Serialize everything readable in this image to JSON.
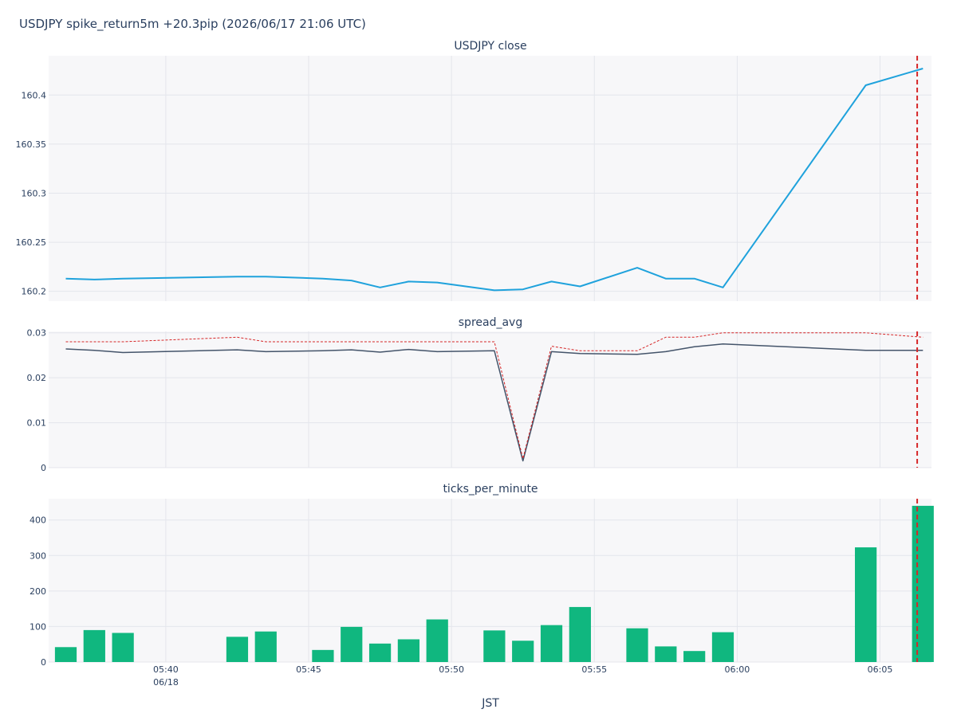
{
  "title": "USDJPY spike_return5m +20.3pip (2026/06/17 21:06 UTC)",
  "x_axis": {
    "title": "JST",
    "tick_labels": [
      "05:40",
      "05:45",
      "05:50",
      "05:55",
      "06:00",
      "06:05"
    ],
    "tick_minutes": [
      40,
      45,
      50,
      55,
      60,
      65
    ],
    "date_label": "06/18",
    "range_minutes": [
      35.9,
      66.8
    ]
  },
  "event_line": {
    "minute": 66.3,
    "color": "#d62728"
  },
  "chart_data": [
    {
      "type": "line",
      "title": "USDJPY close",
      "ylim": [
        160.19,
        160.44
      ],
      "yticks": [
        160.2,
        160.25,
        160.3,
        160.35,
        160.4
      ],
      "ytick_labels": [
        "160.2",
        "160.25",
        "160.3",
        "160.35",
        "160.4"
      ],
      "series": [
        {
          "color": "#1fa2dc",
          "x": [
            36.5,
            37.5,
            38.5,
            42.5,
            43.5,
            45.5,
            46.5,
            47.5,
            48.5,
            49.5,
            51.5,
            52.5,
            53.5,
            54.5,
            56.5,
            57.5,
            58.5,
            59.5,
            64.5,
            66.5
          ],
          "y": [
            160.213,
            160.212,
            160.213,
            160.215,
            160.215,
            160.213,
            160.211,
            160.204,
            160.21,
            160.209,
            160.201,
            160.202,
            160.21,
            160.205,
            160.224,
            160.213,
            160.213,
            160.204,
            160.41,
            160.427
          ]
        }
      ]
    },
    {
      "type": "line",
      "title": "spread_avg",
      "ylim": [
        0,
        0.0303
      ],
      "yticks": [
        0,
        0.01,
        0.02,
        0.03
      ],
      "ytick_labels": [
        "0",
        "0.01",
        "0.02",
        "0.03"
      ],
      "series": [
        {
          "color": "#44546a",
          "dash": "solid",
          "x": [
            36.5,
            37.5,
            38.5,
            42.5,
            43.5,
            45.5,
            46.5,
            47.5,
            48.5,
            49.5,
            51.5,
            52.5,
            53.5,
            54.5,
            56.5,
            57.5,
            58.5,
            59.5,
            64.5,
            66.5
          ],
          "y": [
            0.0264,
            0.0261,
            0.0256,
            0.0262,
            0.0258,
            0.026,
            0.0262,
            0.0257,
            0.0263,
            0.0258,
            0.026,
            0.0015,
            0.0258,
            0.0254,
            0.0252,
            0.0258,
            0.0269,
            0.0275,
            0.0261,
            0.0261
          ]
        },
        {
          "color": "#d62728",
          "dash": "dot",
          "x": [
            36.5,
            37.5,
            38.5,
            42.5,
            43.5,
            45.5,
            46.5,
            47.5,
            48.5,
            49.5,
            51.5,
            52.5,
            53.5,
            54.5,
            56.5,
            57.5,
            58.5,
            59.5,
            64.5,
            66.5
          ],
          "y": [
            0.028,
            0.028,
            0.028,
            0.029,
            0.028,
            0.028,
            0.028,
            0.028,
            0.028,
            0.028,
            0.028,
            0.002,
            0.027,
            0.026,
            0.026,
            0.029,
            0.029,
            0.03,
            0.03,
            0.029
          ]
        }
      ]
    },
    {
      "type": "bar",
      "title": "ticks_per_minute",
      "ylim": [
        0,
        460
      ],
      "yticks": [
        0,
        100,
        200,
        300,
        400
      ],
      "ytick_labels": [
        "0",
        "100",
        "200",
        "300",
        "400"
      ],
      "color": "#10b77f",
      "x": [
        36.5,
        37.5,
        38.5,
        42.5,
        43.5,
        45.5,
        46.5,
        47.5,
        48.5,
        49.5,
        51.5,
        52.5,
        53.5,
        54.5,
        56.5,
        57.5,
        58.5,
        59.5,
        64.5,
        66.5
      ],
      "values": [
        42,
        90,
        82,
        71,
        86,
        34,
        99,
        52,
        64,
        120,
        89,
        60,
        104,
        155,
        95,
        44,
        31,
        84,
        323,
        440
      ]
    }
  ]
}
